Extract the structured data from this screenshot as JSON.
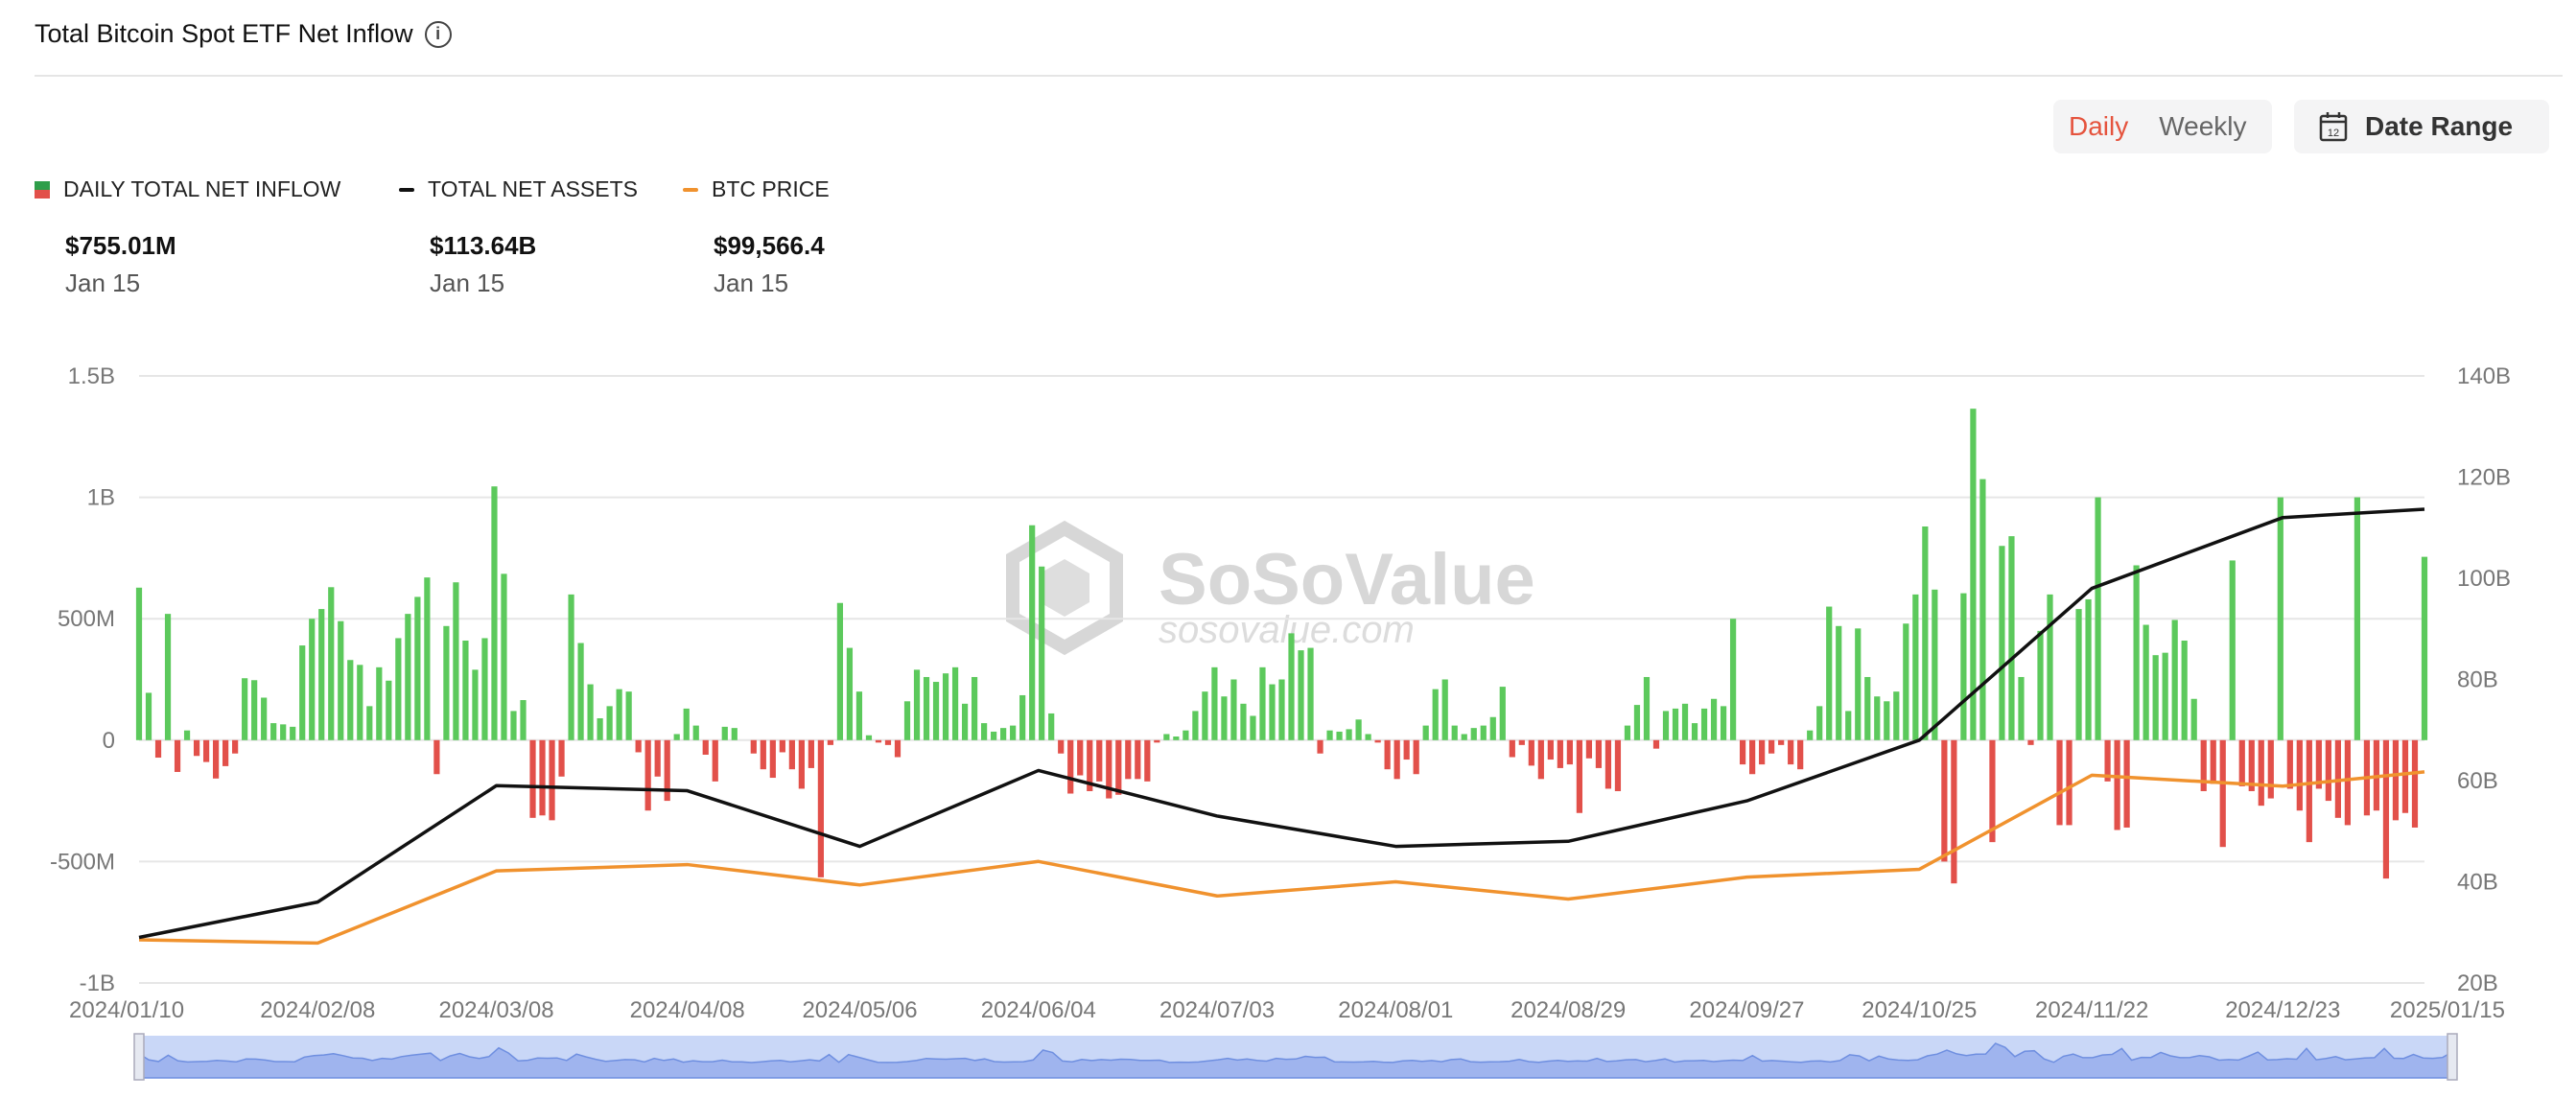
{
  "header": {
    "title": "Total Bitcoin Spot ETF Net Inflow",
    "info_icon": "info-icon"
  },
  "controls": {
    "daily_label": "Daily",
    "weekly_label": "Weekly",
    "date_range_label": "Date Range",
    "calendar_icon_text": "12"
  },
  "legend": [
    {
      "label": "DAILY TOTAL NET INFLOW",
      "value": "$755.01M",
      "date": "Jan 15"
    },
    {
      "label": "TOTAL NET ASSETS",
      "value": "$113.64B",
      "date": "Jan 15"
    },
    {
      "label": "BTC PRICE",
      "value": "$99,566.4",
      "date": "Jan 15"
    }
  ],
  "watermark": {
    "brand": "SoSoValue",
    "url": "sosovalue.com"
  },
  "colors": {
    "positive": "#5cc95c",
    "negative": "#e2504a",
    "assets": "#111111",
    "price": "#f0922e",
    "accent": "#e5533d",
    "navigator": "#c9d7f7"
  },
  "chart_data": {
    "type": "bar",
    "x_start": "2024/01/10",
    "x_end": "2025/01/15",
    "xticks": [
      "2024/01/10",
      "2024/02/08",
      "2024/03/08",
      "2024/04/08",
      "2024/05/06",
      "2024/06/04",
      "2024/07/03",
      "2024/08/01",
      "2024/08/29",
      "2024/09/27",
      "2024/10/25",
      "2024/11/22",
      "2024/12/23",
      "2025/01/15"
    ],
    "ylim_left": [
      -1000,
      1500
    ],
    "yticks_left": [
      "-1B",
      "-500M",
      "0",
      "500M",
      "1B",
      "1.5B"
    ],
    "ylim_right": [
      20,
      140
    ],
    "yticks_right": [
      "20B",
      "40B",
      "60B",
      "80B",
      "100B",
      "120B",
      "140B"
    ],
    "grid": true,
    "series": [
      {
        "name": "DAILY TOTAL NET INFLOW",
        "type": "bar",
        "unit": "USD millions",
        "values": [
          628,
          195,
          -72,
          520,
          -131,
          40,
          -65,
          -90,
          -158,
          -107,
          -55,
          255,
          247,
          175,
          70,
          65,
          55,
          390,
          500,
          540,
          630,
          490,
          330,
          310,
          140,
          300,
          245,
          420,
          520,
          590,
          670,
          -140,
          470,
          650,
          410,
          290,
          420,
          1045,
          685,
          120,
          165,
          -320,
          -310,
          -330,
          -150,
          600,
          400,
          230,
          90,
          140,
          210,
          200,
          -50,
          -290,
          -150,
          -250,
          25,
          130,
          60,
          -60,
          -170,
          55,
          50,
          0,
          -55,
          -120,
          -155,
          -50,
          -120,
          -200,
          -115,
          -565,
          -20,
          565,
          380,
          200,
          20,
          -10,
          -20,
          -70,
          160,
          290,
          260,
          240,
          275,
          300,
          150,
          260,
          70,
          35,
          50,
          60,
          185,
          885,
          715,
          110,
          -55,
          -220,
          -145,
          -210,
          -170,
          -240,
          -225,
          -160,
          -160,
          -170,
          -10,
          25,
          15,
          40,
          120,
          200,
          300,
          180,
          250,
          150,
          100,
          300,
          230,
          250,
          440,
          370,
          380,
          -55,
          40,
          35,
          45,
          85,
          25,
          -10,
          -120,
          -160,
          -80,
          -140,
          60,
          210,
          250,
          60,
          25,
          50,
          60,
          95,
          220,
          -70,
          -20,
          -105,
          -160,
          -80,
          -115,
          -100,
          -300,
          -75,
          -115,
          -200,
          -210,
          60,
          145,
          260,
          -35,
          120,
          130,
          150,
          70,
          130,
          170,
          140,
          500,
          -100,
          -140,
          -100,
          -55,
          -20,
          -100,
          -120,
          40,
          140,
          550,
          470,
          120,
          460,
          260,
          180,
          160,
          200,
          480,
          600,
          880,
          620,
          -500,
          -590,
          605,
          1365,
          1075,
          -420,
          800,
          840,
          260,
          -20,
          450,
          600,
          -350,
          -350,
          540,
          580,
          1000,
          -170,
          -370,
          -360,
          720,
          475,
          350,
          360,
          495,
          410,
          170,
          -210,
          -180,
          -440,
          740,
          -190,
          -210,
          -270,
          -240,
          1000,
          -200,
          -290,
          -420,
          -200,
          -250,
          -320,
          -350,
          1000,
          -310,
          -290,
          -570,
          -330,
          -300,
          -360,
          755
        ]
      },
      {
        "name": "TOTAL NET ASSETS",
        "type": "line",
        "unit": "USD billions",
        "x": [
          "2024/01/10",
          "2024/02/08",
          "2024/03/08",
          "2024/04/08",
          "2024/05/06",
          "2024/06/04",
          "2024/07/03",
          "2024/08/01",
          "2024/08/29",
          "2024/09/27",
          "2024/10/25",
          "2024/11/22",
          "2024/12/23",
          "2025/01/15"
        ],
        "values": [
          29,
          36,
          59,
          58,
          47,
          62,
          53,
          47,
          48,
          56,
          68,
          98,
          112,
          113.64
        ]
      },
      {
        "name": "BTC PRICE",
        "type": "line",
        "unit": "USD",
        "x": [
          "2024/01/10",
          "2024/02/08",
          "2024/03/08",
          "2024/04/08",
          "2024/05/06",
          "2024/06/04",
          "2024/07/03",
          "2024/08/01",
          "2024/08/29",
          "2024/09/27",
          "2024/10/25",
          "2024/11/22",
          "2024/12/23",
          "2025/01/15"
        ],
        "values": [
          46000,
          45000,
          68000,
          70000,
          63500,
          71000,
          60000,
          64500,
          59000,
          66000,
          68500,
          98500,
          95000,
          99566.4
        ]
      }
    ]
  }
}
